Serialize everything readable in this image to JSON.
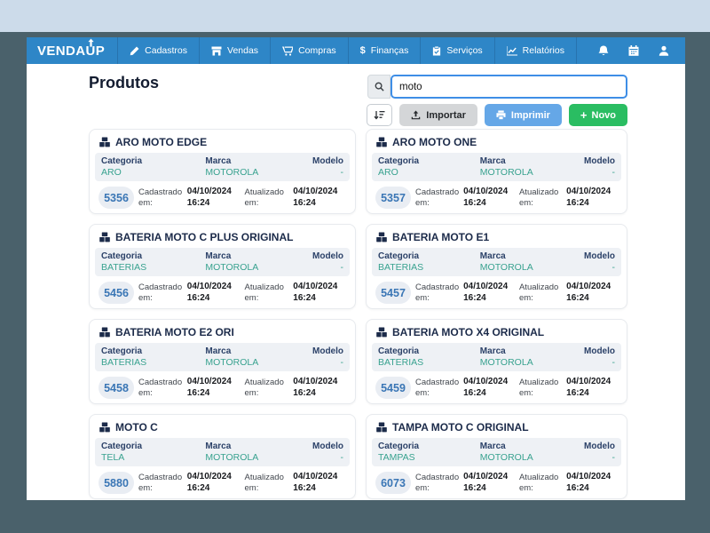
{
  "navbar": {
    "brand_pre": "VENDA",
    "brand_mid": "U",
    "brand_post": "P",
    "items": [
      {
        "label": "Cadastros",
        "icon": "pencil-icon"
      },
      {
        "label": "Vendas",
        "icon": "store-icon"
      },
      {
        "label": "Compras",
        "icon": "cart-icon"
      },
      {
        "label": "Finanças",
        "icon": "dollar-icon",
        "glyph": "$"
      },
      {
        "label": "Serviços",
        "icon": "clipboard-check-icon"
      },
      {
        "label": "Relatórios",
        "icon": "chart-line-icon"
      }
    ],
    "action_icons": [
      "bell-icon",
      "calendar-icon",
      "user-icon"
    ]
  },
  "page": {
    "title": "Produtos"
  },
  "search": {
    "value": "moto",
    "icon": "search-icon"
  },
  "toolbar": {
    "sort_icon": "sort-amount-down-icon",
    "import_label": "Importar",
    "print_label": "Imprimir",
    "new_label": "Novo",
    "new_plus": "+"
  },
  "labels": {
    "category": "Categoria",
    "brand": "Marca",
    "model": "Modelo",
    "created": "Cadastrado em:",
    "updated": "Atualizado em:"
  },
  "products": [
    {
      "id": "5356",
      "name": "ARO MOTO EDGE",
      "category": "ARO",
      "brand": "MOTOROLA",
      "model": "-",
      "created_date": "04/10/2024",
      "created_time": "16:24",
      "updated_date": "04/10/2024",
      "updated_time": "16:24"
    },
    {
      "id": "5357",
      "name": "ARO MOTO ONE",
      "category": "ARO",
      "brand": "MOTOROLA",
      "model": "-",
      "created_date": "04/10/2024",
      "created_time": "16:24",
      "updated_date": "04/10/2024",
      "updated_time": "16:24"
    },
    {
      "id": "5456",
      "name": "BATERIA MOTO C PLUS ORIGINAL",
      "category": "BATERIAS",
      "brand": "MOTOROLA",
      "model": "-",
      "created_date": "04/10/2024",
      "created_time": "16:24",
      "updated_date": "04/10/2024",
      "updated_time": "16:24"
    },
    {
      "id": "5457",
      "name": "BATERIA MOTO E1",
      "category": "BATERIAS",
      "brand": "MOTOROLA",
      "model": "-",
      "created_date": "04/10/2024",
      "created_time": "16:24",
      "updated_date": "04/10/2024",
      "updated_time": "16:24"
    },
    {
      "id": "5458",
      "name": "BATERIA MOTO E2 ORI",
      "category": "BATERIAS",
      "brand": "MOTOROLA",
      "model": "-",
      "created_date": "04/10/2024",
      "created_time": "16:24",
      "updated_date": "04/10/2024",
      "updated_time": "16:24"
    },
    {
      "id": "5459",
      "name": "BATERIA MOTO X4 ORIGINAL",
      "category": "BATERIAS",
      "brand": "MOTOROLA",
      "model": "-",
      "created_date": "04/10/2024",
      "created_time": "16:24",
      "updated_date": "04/10/2024",
      "updated_time": "16:24"
    },
    {
      "id": "5880",
      "name": "MOTO C",
      "category": "TELA",
      "brand": "MOTOROLA",
      "model": "-",
      "created_date": "04/10/2024",
      "created_time": "16:24",
      "updated_date": "04/10/2024",
      "updated_time": "16:24"
    },
    {
      "id": "6073",
      "name": "TAMPA MOTO C ORIGINAL",
      "category": "TAMPAS",
      "brand": "MOTOROLA",
      "model": "-",
      "created_date": "04/10/2024",
      "created_time": "16:24",
      "updated_date": "04/10/2024",
      "updated_time": "16:24"
    }
  ],
  "colors": {
    "navbar": "#2e86c7",
    "page_background": "#4a616b",
    "top_band": "#ccdbea",
    "accent_teal": "#38a28f",
    "badge_blue": "#3a76b5",
    "button_print": "#65a7e7",
    "button_new": "#2abd62",
    "search_border": "#3e8ee6"
  }
}
